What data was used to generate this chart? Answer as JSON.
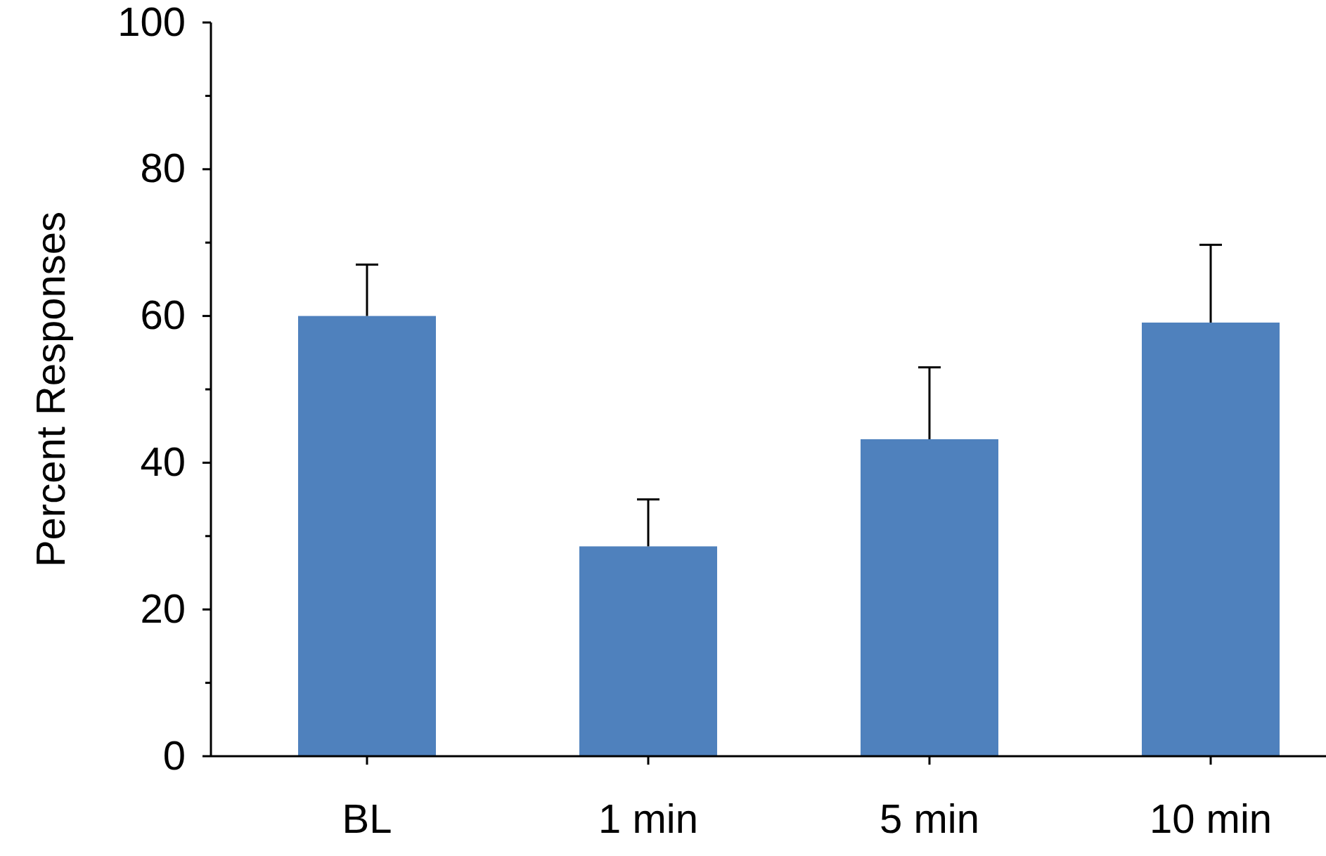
{
  "chart_data": {
    "type": "bar",
    "ylabel": "Percent Responses",
    "categories": [
      "BL",
      "1 min",
      "5 min",
      "10 min"
    ],
    "values": [
      60,
      28.6,
      43.2,
      59.1
    ],
    "errors": [
      [
        60,
        67
      ],
      [
        28.6,
        35
      ],
      [
        43.2,
        53
      ],
      [
        59.1,
        69.7
      ]
    ],
    "color": "#4f81bd",
    "ylim": [
      0,
      100
    ],
    "yticks": [
      0,
      {
        "value": 10,
        "label": null
      },
      20,
      {
        "value": 30,
        "label": null
      },
      40,
      {
        "value": 50,
        "label": null
      },
      60,
      {
        "value": 70,
        "label": null
      },
      80,
      {
        "value": 90,
        "label": null
      },
      100
    ],
    "grid": false
  }
}
